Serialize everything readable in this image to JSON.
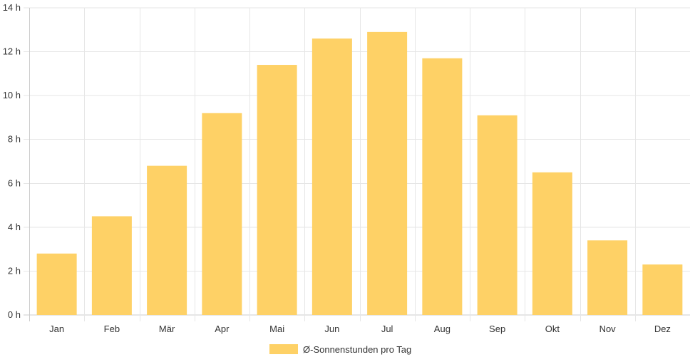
{
  "chart_data": {
    "type": "bar",
    "categories": [
      "Jan",
      "Feb",
      "Mär",
      "Apr",
      "Mai",
      "Jun",
      "Jul",
      "Aug",
      "Sep",
      "Okt",
      "Nov",
      "Dez"
    ],
    "series": [
      {
        "name": "Ø-Sonnenstunden pro Tag",
        "values": [
          2.8,
          4.5,
          6.8,
          9.2,
          11.4,
          12.6,
          12.9,
          11.7,
          9.1,
          6.5,
          3.4,
          2.3
        ]
      }
    ],
    "ylim": [
      0,
      14
    ],
    "yticks": [
      "0 h",
      "2 h",
      "4 h",
      "6 h",
      "8 h",
      "10 h",
      "12 h",
      "14 h"
    ],
    "grid": true,
    "legend": "bottom",
    "colors": {
      "bar": "#fed166",
      "grid": "#e6e6e6",
      "axis": "#cccccc",
      "text": "#333333"
    }
  }
}
